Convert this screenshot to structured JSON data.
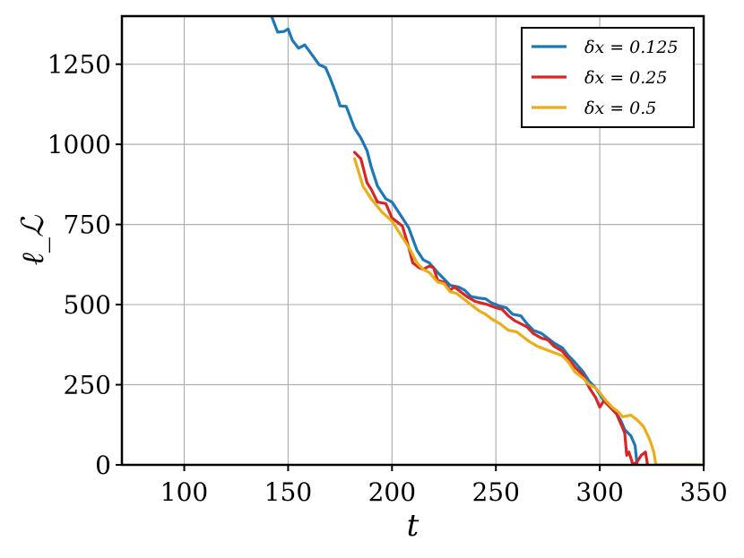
{
  "chart_data": {
    "type": "line",
    "title": "",
    "xlabel": "t",
    "ylabel": "ℓ_ℒ",
    "xlim": [
      70,
      350
    ],
    "ylim": [
      0,
      1400
    ],
    "xticks": [
      100,
      150,
      200,
      250,
      300,
      350
    ],
    "yticks": [
      0,
      250,
      500,
      750,
      1000,
      1250
    ],
    "grid": true,
    "legend_position": "top-right",
    "series": [
      {
        "name": "δx = 0.125",
        "color": "#1f77b4",
        "points": [
          [
            142,
            1400
          ],
          [
            145,
            1350
          ],
          [
            148,
            1352
          ],
          [
            150,
            1360
          ],
          [
            152,
            1325
          ],
          [
            155,
            1300
          ],
          [
            158,
            1310
          ],
          [
            162,
            1275
          ],
          [
            165,
            1248
          ],
          [
            168,
            1240
          ],
          [
            170,
            1210
          ],
          [
            173,
            1160
          ],
          [
            175,
            1120
          ],
          [
            178,
            1118
          ],
          [
            182,
            1050
          ],
          [
            185,
            1020
          ],
          [
            188,
            980
          ],
          [
            190,
            930
          ],
          [
            193,
            870
          ],
          [
            197,
            830
          ],
          [
            200,
            820
          ],
          [
            203,
            790
          ],
          [
            205,
            770
          ],
          [
            208,
            740
          ],
          [
            212,
            670
          ],
          [
            215,
            640
          ],
          [
            218,
            630
          ],
          [
            222,
            600
          ],
          [
            225,
            580
          ],
          [
            228,
            560
          ],
          [
            232,
            555
          ],
          [
            235,
            545
          ],
          [
            238,
            525
          ],
          [
            242,
            520
          ],
          [
            245,
            518
          ],
          [
            248,
            505
          ],
          [
            252,
            495
          ],
          [
            255,
            490
          ],
          [
            258,
            470
          ],
          [
            262,
            465
          ],
          [
            265,
            440
          ],
          [
            268,
            420
          ],
          [
            272,
            410
          ],
          [
            275,
            395
          ],
          [
            278,
            380
          ],
          [
            282,
            365
          ],
          [
            285,
            340
          ],
          [
            288,
            320
          ],
          [
            292,
            290
          ],
          [
            295,
            260
          ],
          [
            298,
            240
          ],
          [
            300,
            220
          ],
          [
            302,
            200
          ],
          [
            305,
            180
          ],
          [
            308,
            160
          ],
          [
            310,
            140
          ],
          [
            312,
            110
          ],
          [
            315,
            90
          ],
          [
            317,
            60
          ],
          [
            318,
            0
          ]
        ]
      },
      {
        "name": "δx = 0.25",
        "color": "#d62728",
        "points": [
          [
            182,
            975
          ],
          [
            185,
            955
          ],
          [
            188,
            880
          ],
          [
            190,
            860
          ],
          [
            193,
            820
          ],
          [
            197,
            815
          ],
          [
            200,
            770
          ],
          [
            203,
            755
          ],
          [
            205,
            745
          ],
          [
            208,
            680
          ],
          [
            210,
            630
          ],
          [
            213,
            615
          ],
          [
            215,
            610
          ],
          [
            218,
            620
          ],
          [
            220,
            615
          ],
          [
            222,
            575
          ],
          [
            225,
            570
          ],
          [
            228,
            545
          ],
          [
            230,
            555
          ],
          [
            233,
            540
          ],
          [
            236,
            525
          ],
          [
            240,
            510
          ],
          [
            243,
            505
          ],
          [
            246,
            500
          ],
          [
            250,
            490
          ],
          [
            253,
            485
          ],
          [
            256,
            465
          ],
          [
            259,
            450
          ],
          [
            262,
            440
          ],
          [
            265,
            430
          ],
          [
            268,
            410
          ],
          [
            272,
            395
          ],
          [
            275,
            390
          ],
          [
            278,
            370
          ],
          [
            282,
            355
          ],
          [
            285,
            330
          ],
          [
            288,
            305
          ],
          [
            292,
            280
          ],
          [
            295,
            240
          ],
          [
            298,
            210
          ],
          [
            300,
            180
          ],
          [
            302,
            200
          ],
          [
            305,
            180
          ],
          [
            308,
            160
          ],
          [
            310,
            130
          ],
          [
            312,
            100
          ],
          [
            313,
            30
          ],
          [
            314,
            40
          ],
          [
            315,
            20
          ],
          [
            316,
            0
          ],
          [
            318,
            10
          ],
          [
            320,
            30
          ],
          [
            322,
            40
          ],
          [
            323,
            0
          ]
        ]
      },
      {
        "name": "δx = 0.5",
        "color": "#e8ae1b",
        "points": [
          [
            182,
            955
          ],
          [
            186,
            870
          ],
          [
            190,
            830
          ],
          [
            195,
            790
          ],
          [
            200,
            760
          ],
          [
            205,
            710
          ],
          [
            208,
            680
          ],
          [
            212,
            630
          ],
          [
            215,
            610
          ],
          [
            218,
            600
          ],
          [
            222,
            570
          ],
          [
            225,
            565
          ],
          [
            228,
            540
          ],
          [
            231,
            535
          ],
          [
            234,
            520
          ],
          [
            238,
            500
          ],
          [
            242,
            480
          ],
          [
            245,
            470
          ],
          [
            248,
            455
          ],
          [
            252,
            440
          ],
          [
            256,
            420
          ],
          [
            260,
            415
          ],
          [
            263,
            400
          ],
          [
            266,
            385
          ],
          [
            270,
            370
          ],
          [
            274,
            360
          ],
          [
            278,
            350
          ],
          [
            282,
            340
          ],
          [
            285,
            320
          ],
          [
            288,
            290
          ],
          [
            292,
            270
          ],
          [
            295,
            250
          ],
          [
            298,
            240
          ],
          [
            300,
            225
          ],
          [
            303,
            200
          ],
          [
            306,
            180
          ],
          [
            309,
            165
          ],
          [
            311,
            150
          ],
          [
            315,
            155
          ],
          [
            318,
            140
          ],
          [
            321,
            120
          ],
          [
            324,
            80
          ],
          [
            326,
            40
          ],
          [
            327,
            0
          ],
          [
            338,
            0
          ],
          [
            340,
            0
          ],
          [
            345,
            0
          ],
          [
            348,
            0
          ]
        ]
      }
    ]
  }
}
